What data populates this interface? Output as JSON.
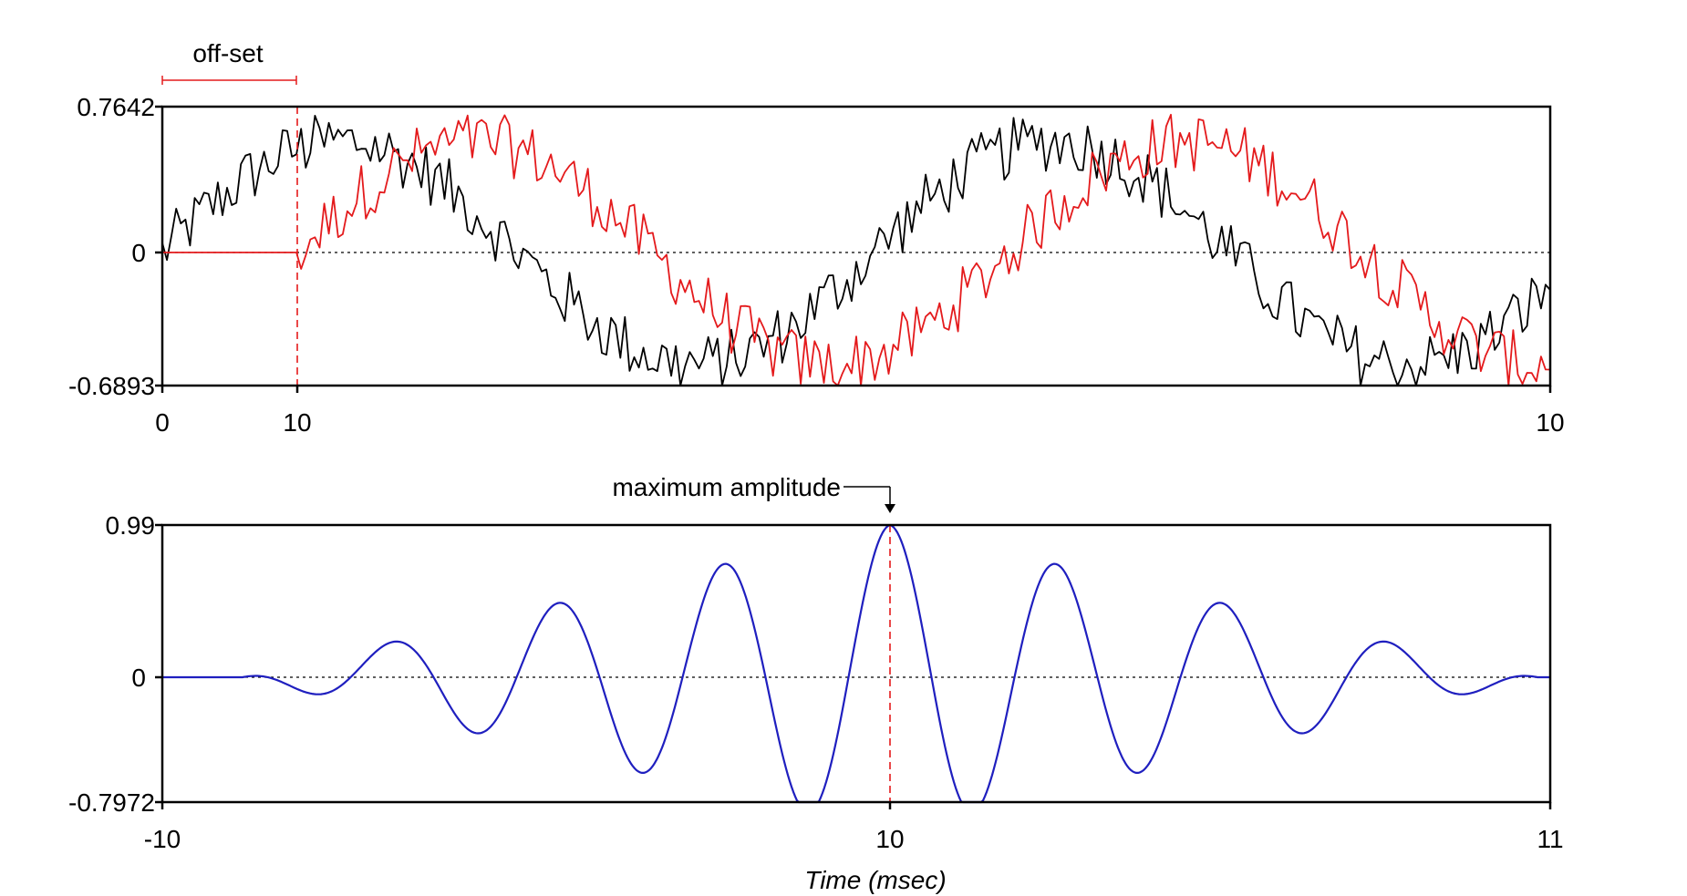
{
  "chart_data": [
    {
      "type": "line",
      "title": "",
      "xlabel": "",
      "ylabel": "",
      "x_tick_labels": [
        "0",
        "10",
        "10"
      ],
      "y_tick_labels": [
        "0.7642",
        "0",
        "-0.6893"
      ],
      "ylim": [
        -0.6893,
        0.7642
      ],
      "xlim": [
        0,
        10
      ],
      "grid": false,
      "zero_line": "dotted",
      "annotations": [
        {
          "text": "off-set",
          "x_from": 0,
          "x_to": 1,
          "color": "#e41a1c"
        }
      ],
      "offset_marker_x": 1,
      "series": [
        {
          "color": "#000000",
          "cycles": 2.5,
          "amplitude": 0.58,
          "phase": 0,
          "start_x": 0
        },
        {
          "color": "#e41a1c",
          "cycles": 2.5,
          "amplitude": 0.58,
          "phase": 0,
          "start_x": 1
        }
      ]
    },
    {
      "type": "line",
      "title": "",
      "xlabel": "Time (msec)",
      "ylabel": "",
      "x_tick_labels": [
        "-10",
        "10",
        "11"
      ],
      "y_tick_labels": [
        "0.99",
        "0",
        "-0.7972"
      ],
      "ylim": [
        -0.7972,
        0.99
      ],
      "xlim": [
        -10,
        11
      ],
      "grid": false,
      "zero_line": "dotted",
      "annotations": [
        {
          "text": "maximum amplitude",
          "x": 10,
          "y": 0.99
        }
      ],
      "peak_marker_x": 10,
      "series": [
        {
          "color": "#1f1fbf",
          "type": "cross-correlation",
          "peak": 0.99,
          "trough": -0.7972
        }
      ]
    }
  ]
}
